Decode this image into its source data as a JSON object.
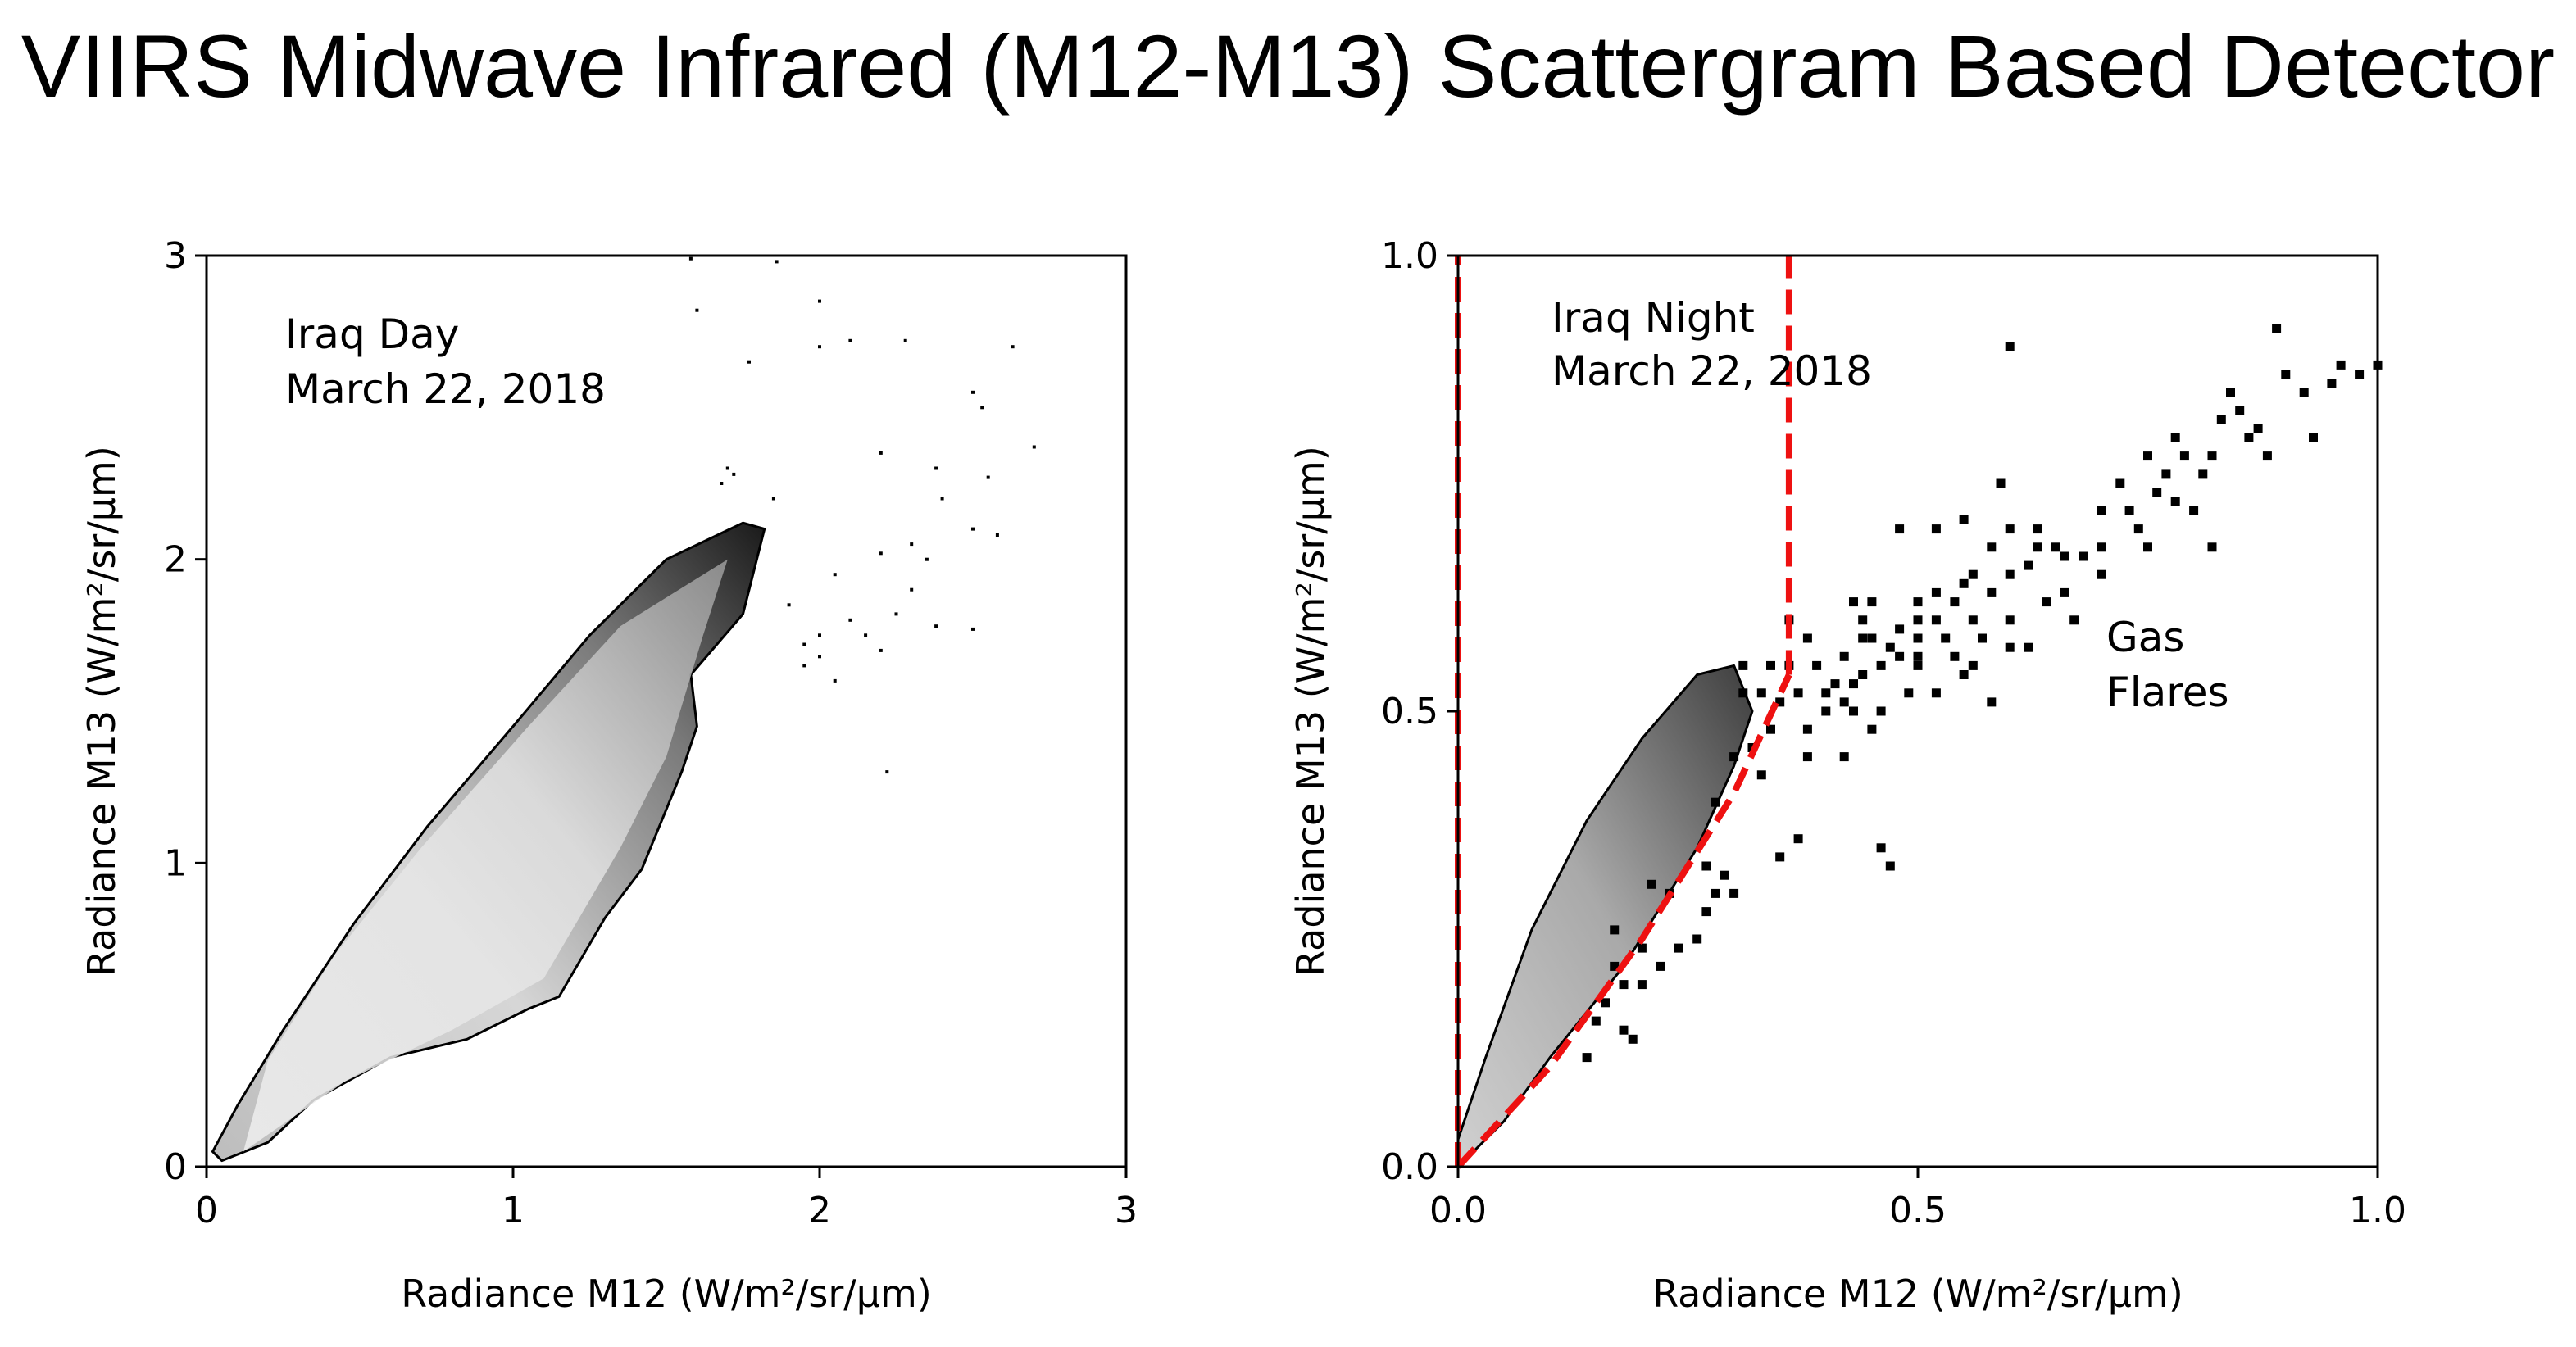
{
  "page": {
    "title": "VIIRS Midwave Infrared (M12-M13) Scattergram Based Detector"
  },
  "chart_data": [
    {
      "type": "scatter",
      "subtype": "2d-histogram",
      "title": "",
      "annotation": [
        "Iraq Day",
        "March 22, 2018"
      ],
      "xlabel": "Radiance M12 (W/m²/sr/μm)",
      "ylabel": "Radiance M13 (W/m²/sr/μm)",
      "xlim": [
        0,
        3
      ],
      "ylim": [
        0,
        3
      ],
      "xticks": [
        "0",
        "1",
        "2",
        "3"
      ],
      "yticks": [
        "0",
        "1",
        "2",
        "3"
      ],
      "density_outline": [
        [
          0.05,
          0.02
        ],
        [
          0.2,
          0.08
        ],
        [
          0.35,
          0.22
        ],
        [
          0.6,
          0.36
        ],
        [
          0.85,
          0.42
        ],
        [
          1.05,
          0.52
        ],
        [
          1.15,
          0.56
        ],
        [
          1.3,
          0.82
        ],
        [
          1.42,
          0.98
        ],
        [
          1.55,
          1.3
        ],
        [
          1.6,
          1.45
        ],
        [
          1.58,
          1.62
        ],
        [
          1.75,
          1.82
        ],
        [
          1.82,
          2.1
        ],
        [
          1.75,
          2.12
        ],
        [
          1.5,
          2.0
        ],
        [
          1.25,
          1.75
        ],
        [
          1.0,
          1.45
        ],
        [
          0.72,
          1.12
        ],
        [
          0.48,
          0.8
        ],
        [
          0.25,
          0.45
        ],
        [
          0.1,
          0.2
        ],
        [
          0.02,
          0.05
        ]
      ],
      "inner_outline": [
        [
          0.12,
          0.05
        ],
        [
          0.45,
          0.28
        ],
        [
          0.8,
          0.45
        ],
        [
          1.1,
          0.62
        ],
        [
          1.35,
          1.05
        ],
        [
          1.5,
          1.35
        ],
        [
          1.62,
          1.75
        ],
        [
          1.7,
          2.0
        ],
        [
          1.35,
          1.78
        ],
        [
          1.05,
          1.45
        ],
        [
          0.7,
          1.05
        ],
        [
          0.42,
          0.7
        ],
        [
          0.2,
          0.35
        ]
      ],
      "outliers": [
        [
          1.58,
          2.99
        ],
        [
          1.86,
          2.98
        ],
        [
          1.6,
          2.82
        ],
        [
          2.0,
          2.85
        ],
        [
          1.77,
          2.65
        ],
        [
          2.0,
          2.7
        ],
        [
          2.1,
          2.72
        ],
        [
          2.63,
          2.7
        ],
        [
          2.28,
          2.72
        ],
        [
          2.5,
          2.55
        ],
        [
          2.53,
          2.5
        ],
        [
          2.2,
          2.35
        ],
        [
          2.38,
          2.3
        ],
        [
          2.7,
          2.37
        ],
        [
          2.55,
          2.27
        ],
        [
          2.4,
          2.2
        ],
        [
          2.5,
          2.1
        ],
        [
          2.58,
          2.08
        ],
        [
          2.3,
          2.05
        ],
        [
          2.2,
          2.02
        ],
        [
          2.35,
          2.0
        ],
        [
          2.05,
          1.95
        ],
        [
          2.3,
          1.9
        ],
        [
          2.25,
          1.82
        ],
        [
          2.1,
          1.8
        ],
        [
          2.0,
          1.75
        ],
        [
          2.15,
          1.75
        ],
        [
          2.38,
          1.78
        ],
        [
          2.5,
          1.77
        ],
        [
          2.2,
          1.7
        ],
        [
          2.0,
          1.68
        ],
        [
          1.95,
          1.72
        ],
        [
          2.05,
          1.6
        ],
        [
          2.22,
          1.3
        ],
        [
          1.9,
          1.85
        ],
        [
          1.95,
          1.65
        ],
        [
          1.85,
          2.2
        ],
        [
          1.7,
          2.3
        ],
        [
          1.72,
          2.28
        ],
        [
          1.68,
          2.25
        ]
      ]
    },
    {
      "type": "scatter",
      "subtype": "2d-histogram",
      "title": "",
      "annotation": [
        "Iraq Night",
        "March 22, 2018"
      ],
      "label": [
        "Gas",
        "Flares"
      ],
      "xlabel": "Radiance M12 (W/m²/sr/μm)",
      "ylabel": "Radiance M13 (W/m²/sr/μm)",
      "xlim": [
        0,
        1
      ],
      "ylim": [
        0,
        1
      ],
      "xticks": [
        "0.0",
        "0.5",
        "1.0"
      ],
      "yticks": [
        "0.0",
        "0.5",
        "1.0"
      ],
      "density_outline": [
        [
          0.0,
          0.0
        ],
        [
          0.05,
          0.05
        ],
        [
          0.1,
          0.12
        ],
        [
          0.18,
          0.22
        ],
        [
          0.26,
          0.35
        ],
        [
          0.3,
          0.44
        ],
        [
          0.32,
          0.5
        ],
        [
          0.3,
          0.55
        ],
        [
          0.26,
          0.54
        ],
        [
          0.2,
          0.47
        ],
        [
          0.14,
          0.38
        ],
        [
          0.08,
          0.26
        ],
        [
          0.03,
          0.12
        ],
        [
          0.0,
          0.03
        ]
      ],
      "red_dashed_lines": [
        {
          "name": "vertical-left",
          "points": [
            [
              0.0,
              0.0
            ],
            [
              0.0,
              1.0
            ]
          ]
        },
        {
          "name": "vertical-right",
          "points": [
            [
              0.36,
              0.54
            ],
            [
              0.36,
              1.0
            ]
          ]
        },
        {
          "name": "diagonal",
          "points": [
            [
              0.0,
              0.0
            ],
            [
              0.1,
              0.11
            ],
            [
              0.2,
              0.25
            ],
            [
              0.3,
              0.41
            ],
            [
              0.36,
              0.54
            ]
          ]
        }
      ],
      "points": [
        [
          0.36,
          0.6
        ],
        [
          0.38,
          0.58
        ],
        [
          0.36,
          0.55
        ],
        [
          0.39,
          0.55
        ],
        [
          0.41,
          0.53
        ],
        [
          0.4,
          0.5
        ],
        [
          0.38,
          0.48
        ],
        [
          0.42,
          0.51
        ],
        [
          0.44,
          0.54
        ],
        [
          0.46,
          0.55
        ],
        [
          0.45,
          0.58
        ],
        [
          0.47,
          0.57
        ],
        [
          0.48,
          0.59
        ],
        [
          0.44,
          0.6
        ],
        [
          0.5,
          0.6
        ],
        [
          0.5,
          0.62
        ],
        [
          0.52,
          0.63
        ],
        [
          0.55,
          0.64
        ],
        [
          0.56,
          0.65
        ],
        [
          0.58,
          0.63
        ],
        [
          0.6,
          0.65
        ],
        [
          0.58,
          0.68
        ],
        [
          0.62,
          0.66
        ],
        [
          0.63,
          0.68
        ],
        [
          0.6,
          0.7
        ],
        [
          0.64,
          0.62
        ],
        [
          0.56,
          0.6
        ],
        [
          0.53,
          0.58
        ],
        [
          0.57,
          0.58
        ],
        [
          0.6,
          0.57
        ],
        [
          0.54,
          0.56
        ],
        [
          0.55,
          0.54
        ],
        [
          0.5,
          0.55
        ],
        [
          0.49,
          0.52
        ],
        [
          0.48,
          0.7
        ],
        [
          0.52,
          0.7
        ],
        [
          0.55,
          0.71
        ],
        [
          0.59,
          0.75
        ],
        [
          0.6,
          0.9
        ],
        [
          0.63,
          0.7
        ],
        [
          0.66,
          0.67
        ],
        [
          0.67,
          0.6
        ],
        [
          0.7,
          0.72
        ],
        [
          0.72,
          0.75
        ],
        [
          0.73,
          0.72
        ],
        [
          0.74,
          0.7
        ],
        [
          0.75,
          0.78
        ],
        [
          0.76,
          0.74
        ],
        [
          0.77,
          0.76
        ],
        [
          0.78,
          0.73
        ],
        [
          0.78,
          0.8
        ],
        [
          0.79,
          0.78
        ],
        [
          0.8,
          0.72
        ],
        [
          0.81,
          0.76
        ],
        [
          0.82,
          0.78
        ],
        [
          0.83,
          0.82
        ],
        [
          0.84,
          0.85
        ],
        [
          0.85,
          0.83
        ],
        [
          0.86,
          0.8
        ],
        [
          0.87,
          0.81
        ],
        [
          0.88,
          0.78
        ],
        [
          0.89,
          0.92
        ],
        [
          0.9,
          0.87
        ],
        [
          0.92,
          0.85
        ],
        [
          0.93,
          0.8
        ],
        [
          0.95,
          0.86
        ],
        [
          0.96,
          0.88
        ],
        [
          0.98,
          0.87
        ],
        [
          1.0,
          0.88
        ],
        [
          0.75,
          0.68
        ],
        [
          0.82,
          0.68
        ],
        [
          0.7,
          0.68
        ],
        [
          0.33,
          0.43
        ],
        [
          0.32,
          0.46
        ],
        [
          0.34,
          0.48
        ],
        [
          0.3,
          0.45
        ],
        [
          0.28,
          0.4
        ],
        [
          0.27,
          0.33
        ],
        [
          0.28,
          0.3
        ],
        [
          0.29,
          0.32
        ],
        [
          0.3,
          0.3
        ],
        [
          0.27,
          0.28
        ],
        [
          0.26,
          0.25
        ],
        [
          0.23,
          0.3
        ],
        [
          0.2,
          0.24
        ],
        [
          0.18,
          0.2
        ],
        [
          0.16,
          0.18
        ],
        [
          0.17,
          0.22
        ],
        [
          0.15,
          0.16
        ],
        [
          0.14,
          0.12
        ],
        [
          0.18,
          0.15
        ],
        [
          0.19,
          0.14
        ],
        [
          0.17,
          0.26
        ],
        [
          0.2,
          0.2
        ],
        [
          0.22,
          0.22
        ],
        [
          0.24,
          0.24
        ],
        [
          0.21,
          0.31
        ],
        [
          0.35,
          0.34
        ],
        [
          0.37,
          0.36
        ],
        [
          0.38,
          0.45
        ],
        [
          0.42,
          0.45
        ],
        [
          0.47,
          0.33
        ],
        [
          0.46,
          0.35
        ],
        [
          0.5,
          0.56
        ],
        [
          0.52,
          0.52
        ],
        [
          0.58,
          0.51
        ],
        [
          0.56,
          0.55
        ],
        [
          0.62,
          0.57
        ],
        [
          0.65,
          0.68
        ],
        [
          0.68,
          0.67
        ],
        [
          0.43,
          0.5
        ],
        [
          0.45,
          0.48
        ],
        [
          0.4,
          0.52
        ],
        [
          0.42,
          0.56
        ],
        [
          0.37,
          0.52
        ],
        [
          0.35,
          0.51
        ],
        [
          0.33,
          0.52
        ],
        [
          0.34,
          0.55
        ],
        [
          0.31,
          0.52
        ],
        [
          0.31,
          0.55
        ],
        [
          0.44,
          0.58
        ],
        [
          0.43,
          0.53
        ],
        [
          0.46,
          0.5
        ],
        [
          0.48,
          0.56
        ],
        [
          0.5,
          0.58
        ],
        [
          0.52,
          0.6
        ],
        [
          0.43,
          0.62
        ],
        [
          0.45,
          0.62
        ],
        [
          0.54,
          0.62
        ],
        [
          0.6,
          0.6
        ],
        [
          0.66,
          0.63
        ],
        [
          0.7,
          0.65
        ]
      ]
    }
  ]
}
